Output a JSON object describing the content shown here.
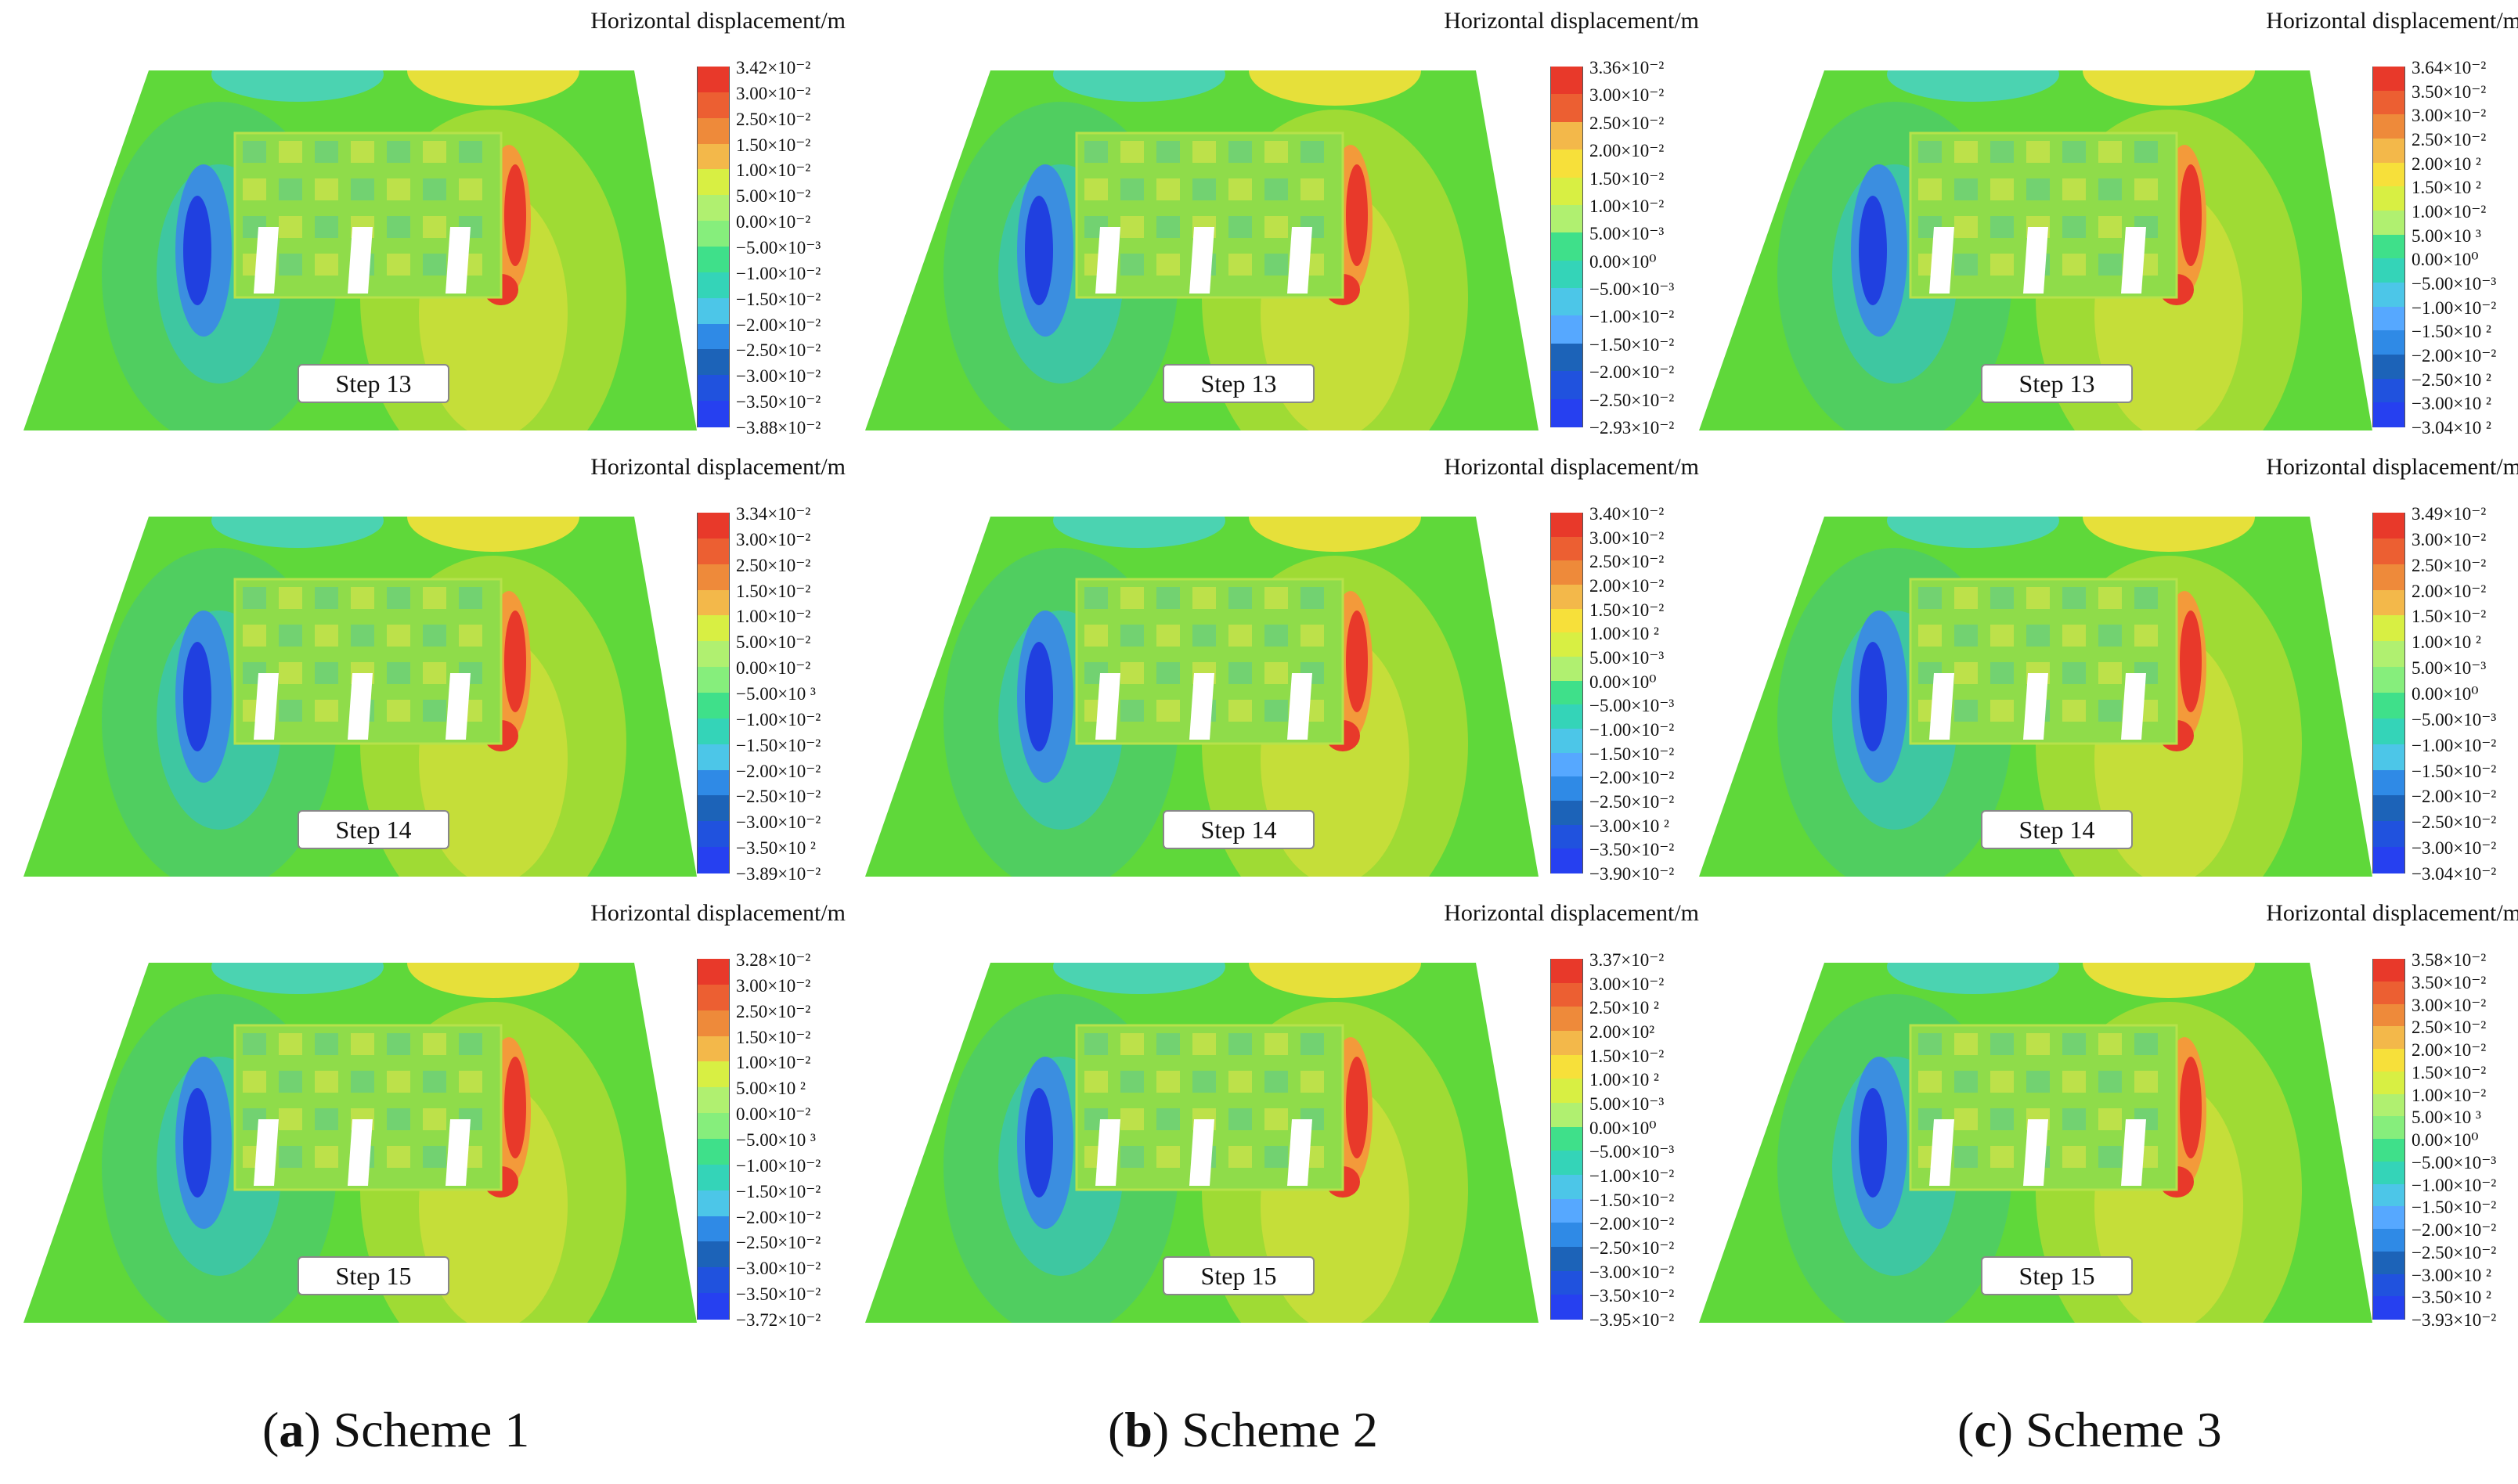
{
  "legend_title": "Horizontal displacement/m",
  "legend_colors": [
    "#e8392a",
    "#ec5f32",
    "#ee8a3a",
    "#f3b84a",
    "#f7e03a",
    "#d8ef43",
    "#b0f070",
    "#86ee7c",
    "#3fe08a",
    "#34d4b8",
    "#4cc6e8",
    "#56a8ff",
    "#2f8ae6",
    "#1c63b8",
    "#2052de",
    "#2640f0"
  ],
  "captions": [
    {
      "letter": "a",
      "text": " Scheme 1"
    },
    {
      "letter": "b",
      "text": " Scheme 2"
    },
    {
      "letter": "c",
      "text": " Scheme 3"
    }
  ],
  "panels": [
    {
      "step": "Step 13",
      "ticks": [
        "3.42×10⁻²",
        "3.00×10⁻²",
        "2.50×10⁻²",
        "1.50×10⁻²",
        "1.00×10⁻²",
        "5.00×10⁻²",
        "0.00×10⁻²",
        "−5.00×10⁻³",
        "−1.00×10⁻²",
        "−1.50×10⁻²",
        "−2.00×10⁻²",
        "−2.50×10⁻²",
        "−3.00×10⁻²",
        "−3.50×10⁻²",
        "−3.88×10⁻²"
      ]
    },
    {
      "step": "Step 14",
      "ticks": [
        "3.34×10⁻²",
        "3.00×10⁻²",
        "2.50×10⁻²",
        "1.50×10⁻²",
        "1.00×10⁻²",
        "5.00×10⁻²",
        "0.00×10⁻²",
        "−5.00×10 ³",
        "−1.00×10⁻²",
        "−1.50×10⁻²",
        "−2.00×10⁻²",
        "−2.50×10⁻²",
        "−3.00×10⁻²",
        "−3.50×10 ²",
        "−3.89×10⁻²"
      ]
    },
    {
      "step": "Step 15",
      "ticks": [
        "3.28×10⁻²",
        "3.00×10⁻²",
        "2.50×10⁻²",
        "1.50×10⁻²",
        "1.00×10⁻²",
        "5.00×10 ²",
        "0.00×10⁻²",
        "−5.00×10 ³",
        "−1.00×10⁻²",
        "−1.50×10⁻²",
        "−2.00×10⁻²",
        "−2.50×10⁻²",
        "−3.00×10⁻²",
        "−3.50×10⁻²",
        "−3.72×10⁻²"
      ]
    },
    {
      "step": "Step 13",
      "ticks": [
        "3.36×10⁻²",
        "3.00×10⁻²",
        "2.50×10⁻²",
        "2.00×10⁻²",
        "1.50×10⁻²",
        "1.00×10⁻²",
        "5.00×10⁻³",
        "0.00×10⁰",
        "−5.00×10⁻³",
        "−1.00×10⁻²",
        "−1.50×10⁻²",
        "−2.00×10⁻²",
        "−2.50×10⁻²",
        "−2.93×10⁻²"
      ]
    },
    {
      "step": "Step 14",
      "ticks": [
        "3.40×10⁻²",
        "3.00×10⁻²",
        "2.50×10⁻²",
        "2.00×10⁻²",
        "1.50×10⁻²",
        "1.00×10 ²",
        "5.00×10⁻³",
        "0.00×10⁰",
        "−5.00×10⁻³",
        "−1.00×10⁻²",
        "−1.50×10⁻²",
        "−2.00×10⁻²",
        "−2.50×10⁻²",
        "−3.00×10 ²",
        "−3.50×10⁻²",
        "−3.90×10⁻²"
      ]
    },
    {
      "step": "Step 15",
      "ticks": [
        "3.37×10⁻²",
        "3.00×10⁻²",
        "2.50×10 ²",
        "2.00×10²",
        "1.50×10⁻²",
        "1.00×10 ²",
        "5.00×10⁻³",
        "0.00×10⁰",
        "−5.00×10⁻³",
        "−1.00×10⁻²",
        "−1.50×10⁻²",
        "−2.00×10⁻²",
        "−2.50×10⁻²",
        "−3.00×10⁻²",
        "−3.50×10⁻²",
        "−3.95×10⁻²"
      ]
    },
    {
      "step": "Step 13",
      "ticks": [
        "3.64×10⁻²",
        "3.50×10⁻²",
        "3.00×10⁻²",
        "2.50×10⁻²",
        "2.00×10 ²",
        "1.50×10 ²",
        "1.00×10⁻²",
        "5.00×10 ³",
        "0.00×10⁰",
        "−5.00×10⁻³",
        "−1.00×10⁻²",
        "−1.50×10 ²",
        "−2.00×10⁻²",
        "−2.50×10 ²",
        "−3.00×10 ²",
        "−3.04×10 ²"
      ]
    },
    {
      "step": "Step 14",
      "ticks": [
        "3.49×10⁻²",
        "3.00×10⁻²",
        "2.50×10⁻²",
        "2.00×10⁻²",
        "1.50×10⁻²",
        "1.00×10 ²",
        "5.00×10⁻³",
        "0.00×10⁰",
        "−5.00×10⁻³",
        "−1.00×10⁻²",
        "−1.50×10⁻²",
        "−2.00×10⁻²",
        "−2.50×10⁻²",
        "−3.00×10⁻²",
        "−3.04×10⁻²"
      ]
    },
    {
      "step": "Step 15",
      "ticks": [
        "3.58×10⁻²",
        "3.50×10⁻²",
        "3.00×10⁻²",
        "2.50×10⁻²",
        "2.00×10⁻²",
        "1.50×10⁻²",
        "1.00×10⁻²",
        "5.00×10 ³",
        "0.00×10⁰",
        "−5.00×10⁻³",
        "−1.00×10⁻²",
        "−1.50×10⁻²",
        "−2.00×10⁻²",
        "−2.50×10⁻²",
        "−3.00×10 ²",
        "−3.50×10 ²",
        "−3.93×10⁻²"
      ]
    }
  ]
}
